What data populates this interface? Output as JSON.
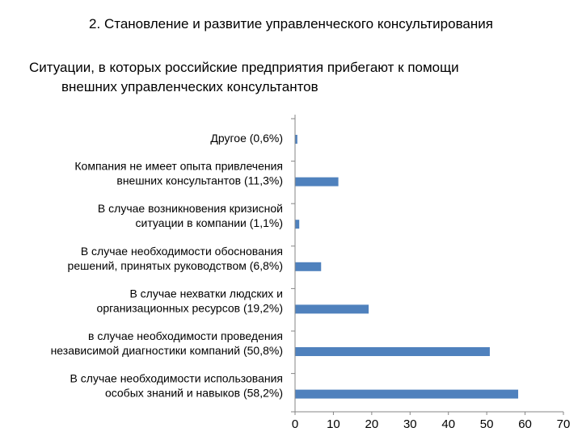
{
  "slide": {
    "heading": "2. Становление и развитие управленческого консультирования"
  },
  "chart_data": {
    "type": "bar",
    "orientation": "horizontal",
    "title_lines": [
      "Ситуации, в которых российские предприятия прибегают  к помощи",
      "внешних управленческих консультантов"
    ],
    "categories": [
      [
        "Другое (0,6%)"
      ],
      [
        "Компания не имеет опыта привлечения",
        "внешних консультантов  (11,3%)"
      ],
      [
        "В случае возникновения кризисной",
        "ситуации в компании (1,1%)"
      ],
      [
        "В случае необходимости обоснования",
        "решений, принятых руководством (6,8%)"
      ],
      [
        "В случае нехватки людских и",
        "организационных ресурсов (19,2%)"
      ],
      [
        "в случае необходимости проведения",
        "независимой диагностики компаний (50,8%)"
      ],
      [
        "В случае необходимости использования",
        "особых знаний и навыков (58,2%)"
      ]
    ],
    "values": [
      0.6,
      11.3,
      1.1,
      6.8,
      19.2,
      50.8,
      58.2
    ],
    "xlim": [
      0,
      70
    ],
    "xticks": [
      0,
      10,
      20,
      30,
      40,
      50,
      60,
      70
    ],
    "bar_color": "#4F81BD",
    "axis_color": "#868686",
    "grid": false,
    "legend": "none"
  }
}
